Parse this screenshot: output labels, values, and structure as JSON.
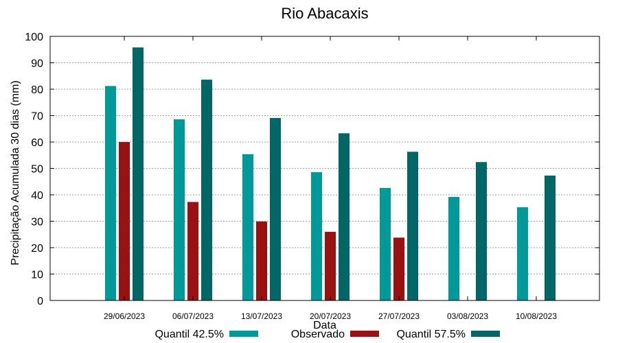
{
  "chart_data": {
    "type": "bar",
    "title": "Rio Abacaxis",
    "xlabel": "Data",
    "ylabel": "Precipitação Acumulada 30 dias (mm)",
    "ylim": [
      0,
      100
    ],
    "yticks": [
      0,
      10,
      20,
      30,
      40,
      50,
      60,
      70,
      80,
      90,
      100
    ],
    "grid": true,
    "legend_position": "bottom",
    "categories": [
      "29/06/2023",
      "06/07/2023",
      "13/07/2023",
      "20/07/2023",
      "27/07/2023",
      "03/08/2023",
      "10/08/2023"
    ],
    "series": [
      {
        "name": "Quantil 42.5%",
        "color": "#009999",
        "values": [
          81.2,
          68.6,
          55.4,
          48.6,
          42.6,
          39.2,
          35.3
        ]
      },
      {
        "name": "Observado",
        "color": "#991111",
        "values": [
          60.0,
          37.3,
          29.9,
          26.0,
          23.8,
          null,
          null
        ]
      },
      {
        "name": "Quantil 57.5%",
        "color": "#006666",
        "values": [
          95.8,
          83.6,
          69.1,
          63.3,
          56.3,
          52.4,
          47.3
        ]
      }
    ]
  }
}
